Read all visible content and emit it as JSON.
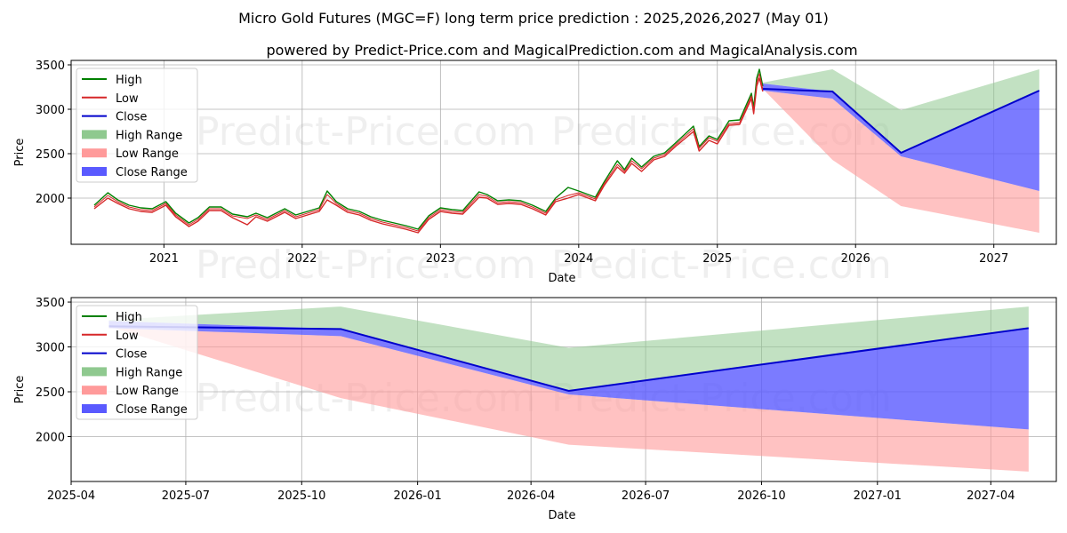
{
  "title": "Micro Gold Futures (MGC=F) long term price prediction : 2025,2026,2027 (May 01)",
  "subtitle": "powered by Predict-Price.com and MagicalPrediction.com and MagicalAnalysis.com",
  "watermark": "Predict-Price.com",
  "colors": {
    "high": "#008000",
    "low": "#d62728",
    "close": "#0000cc",
    "high_range": "#8fc98f",
    "low_range": "#ff9a9a",
    "close_range": "#5a5aff",
    "grid": "#b0b0b0"
  },
  "legend": {
    "items": [
      {
        "label": "High",
        "kind": "line",
        "color": "#008000"
      },
      {
        "label": "Low",
        "kind": "line",
        "color": "#d62728"
      },
      {
        "label": "Close",
        "kind": "line",
        "color": "#0000cc"
      },
      {
        "label": "High Range",
        "kind": "patch",
        "color": "#8fc98f"
      },
      {
        "label": "Low Range",
        "kind": "patch",
        "color": "#ff9a9a"
      },
      {
        "label": "Close Range",
        "kind": "patch",
        "color": "#5a5aff"
      }
    ],
    "placement": "upper-left"
  },
  "chart_data": [
    {
      "type": "line",
      "xlabel": "Date",
      "ylabel": "Price",
      "xlim": [
        "2020-05-01",
        "2027-06-15"
      ],
      "ylim": [
        1480,
        3550
      ],
      "x_ticks": [
        "2021-01-01",
        "2022-01-01",
        "2023-01-01",
        "2024-01-01",
        "2025-01-01",
        "2026-01-01",
        "2027-01-01"
      ],
      "x_tick_labels": [
        "2021",
        "2022",
        "2023",
        "2024",
        "2025",
        "2026",
        "2027"
      ],
      "y_ticks": [
        2000,
        2500,
        3000,
        3500
      ],
      "y_tick_labels": [
        "2000",
        "2500",
        "3000",
        "3500"
      ],
      "grid": true,
      "history": {
        "dates": [
          "2020-07-01",
          "2020-08-06",
          "2020-09-01",
          "2020-10-01",
          "2020-11-01",
          "2020-12-01",
          "2021-01-06",
          "2021-02-01",
          "2021-03-08",
          "2021-04-01",
          "2021-05-01",
          "2021-06-01",
          "2021-07-01",
          "2021-08-09",
          "2021-09-01",
          "2021-10-01",
          "2021-11-16",
          "2021-12-15",
          "2022-01-15",
          "2022-02-15",
          "2022-03-08",
          "2022-04-01",
          "2022-05-01",
          "2022-06-01",
          "2022-07-01",
          "2022-08-01",
          "2022-09-01",
          "2022-10-01",
          "2022-11-03",
          "2022-12-01",
          "2023-01-01",
          "2023-02-01",
          "2023-03-01",
          "2023-04-13",
          "2023-05-04",
          "2023-06-01",
          "2023-07-01",
          "2023-08-01",
          "2023-09-01",
          "2023-10-06",
          "2023-11-01",
          "2023-12-04",
          "2024-01-01",
          "2024-02-14",
          "2024-03-08",
          "2024-04-12",
          "2024-05-01",
          "2024-05-20",
          "2024-06-15",
          "2024-07-17",
          "2024-08-15",
          "2024-09-15",
          "2024-10-30",
          "2024-11-14",
          "2024-12-10",
          "2025-01-01",
          "2025-02-01",
          "2025-03-01",
          "2025-04-01",
          "2025-04-07",
          "2025-04-15",
          "2025-04-22",
          "2025-05-01"
        ],
        "close": [
          1900,
          2030,
          1960,
          1900,
          1870,
          1860,
          1940,
          1810,
          1700,
          1760,
          1880,
          1880,
          1800,
          1770,
          1810,
          1760,
          1860,
          1790,
          1830,
          1870,
          2040,
          1940,
          1860,
          1830,
          1770,
          1730,
          1700,
          1670,
          1630,
          1780,
          1870,
          1850,
          1840,
          2040,
          2020,
          1950,
          1960,
          1950,
          1900,
          1830,
          1980,
          2030,
          2060,
          1990,
          2160,
          2380,
          2300,
          2420,
          2330,
          2450,
          2490,
          2610,
          2780,
          2560,
          2680,
          2640,
          2840,
          2850,
          3150,
          2980,
          3300,
          3400,
          3230
        ],
        "high": [
          1920,
          2060,
          1980,
          1920,
          1890,
          1880,
          1960,
          1830,
          1720,
          1780,
          1900,
          1900,
          1820,
          1790,
          1830,
          1780,
          1880,
          1810,
          1850,
          1890,
          2080,
          1960,
          1880,
          1850,
          1790,
          1750,
          1720,
          1690,
          1650,
          1800,
          1890,
          1870,
          1860,
          2070,
          2040,
          1970,
          1980,
          1970,
          1920,
          1850,
          2000,
          2120,
          2080,
          2010,
          2180,
          2420,
          2320,
          2450,
          2350,
          2470,
          2510,
          2630,
          2810,
          2580,
          2700,
          2660,
          2870,
          2880,
          3180,
          3020,
          3350,
          3450,
          3260
        ],
        "low": [
          1880,
          2000,
          1940,
          1880,
          1850,
          1840,
          1920,
          1790,
          1680,
          1740,
          1860,
          1860,
          1780,
          1700,
          1790,
          1740,
          1840,
          1770,
          1810,
          1850,
          1980,
          1920,
          1840,
          1810,
          1750,
          1710,
          1680,
          1650,
          1610,
          1760,
          1850,
          1830,
          1820,
          2010,
          2000,
          1930,
          1940,
          1930,
          1880,
          1810,
          1960,
          2000,
          2040,
          1970,
          2140,
          2350,
          2280,
          2390,
          2300,
          2430,
          2470,
          2590,
          2750,
          2530,
          2650,
          2610,
          2820,
          2830,
          3120,
          2950,
          3260,
          3350,
          3200
        ]
      },
      "forecast": {
        "dates": [
          "2025-05-01",
          "2025-11-01",
          "2026-05-01",
          "2027-05-01"
        ],
        "high_upper": [
          3300,
          3450,
          2990,
          3450
        ],
        "low_lower": [
          3230,
          2430,
          1910,
          1610
        ],
        "close_upper": [
          3290,
          3200,
          2510,
          3210
        ],
        "close_lower": [
          3210,
          3120,
          2470,
          2080
        ],
        "close": [
          3230,
          3200,
          2510,
          3210
        ]
      }
    },
    {
      "type": "line",
      "xlabel": "Date",
      "ylabel": "Price",
      "xlim": [
        "2025-04-01",
        "2027-05-23"
      ],
      "ylim": [
        1500,
        3550
      ],
      "x_ticks": [
        "2025-04-01",
        "2025-07-01",
        "2025-10-01",
        "2026-01-01",
        "2026-04-01",
        "2026-07-01",
        "2026-10-01",
        "2027-01-01",
        "2027-04-01"
      ],
      "x_tick_labels": [
        "2025-04",
        "2025-07",
        "2025-10",
        "2026-01",
        "2026-04",
        "2026-07",
        "2026-10",
        "2027-01",
        "2027-04"
      ],
      "y_ticks": [
        2000,
        2500,
        3000,
        3500
      ],
      "y_tick_labels": [
        "2000",
        "2500",
        "3000",
        "3500"
      ],
      "grid": true,
      "forecast": {
        "dates": [
          "2025-05-01",
          "2025-11-01",
          "2026-05-01",
          "2027-05-01"
        ],
        "high_upper": [
          3300,
          3450,
          2990,
          3450
        ],
        "low_lower": [
          3230,
          2430,
          1910,
          1610
        ],
        "close_upper": [
          3290,
          3200,
          2510,
          3210
        ],
        "close_lower": [
          3210,
          3120,
          2470,
          2080
        ],
        "close": [
          3230,
          3200,
          2510,
          3210
        ]
      }
    }
  ]
}
